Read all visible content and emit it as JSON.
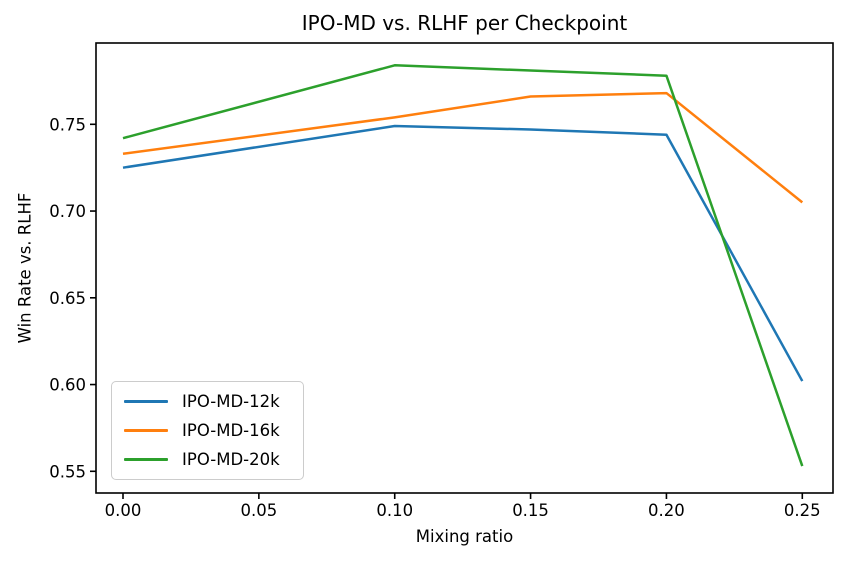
{
  "figure": {
    "background": "#ffffff",
    "axis_color": "#000000"
  },
  "chart_data": {
    "type": "line",
    "title": "IPO-MD vs. RLHF per Checkpoint",
    "xlabel": "Mixing ratio",
    "ylabel": "Win Rate vs. RLHF",
    "x": [
      0.0,
      0.1,
      0.15,
      0.2,
      0.25
    ],
    "series": [
      {
        "name": "IPO-MD-12k",
        "color": "#1f77b4",
        "values": [
          0.725,
          0.749,
          0.747,
          0.744,
          0.602
        ]
      },
      {
        "name": "IPO-MD-16k",
        "color": "#ff7f0e",
        "values": [
          0.733,
          0.754,
          0.766,
          0.768,
          0.705
        ]
      },
      {
        "name": "IPO-MD-20k",
        "color": "#2ca02c",
        "values": [
          0.742,
          0.784,
          0.781,
          0.778,
          0.553
        ]
      }
    ],
    "x_ticks": [
      0.0,
      0.05,
      0.1,
      0.15,
      0.2,
      0.25
    ],
    "x_tick_labels": [
      "0.00",
      "0.05",
      "0.10",
      "0.15",
      "0.20",
      "0.25"
    ],
    "y_ticks": [
      0.55,
      0.6,
      0.65,
      0.7,
      0.75
    ],
    "y_tick_labels": [
      "0.55",
      "0.60",
      "0.65",
      "0.70",
      "0.75"
    ],
    "xlim": [
      -0.009937,
      0.2613
    ],
    "ylim": [
      0.537493,
      0.796859
    ],
    "grid": false,
    "legend_position": "lower-left",
    "line_width": 2.5
  }
}
